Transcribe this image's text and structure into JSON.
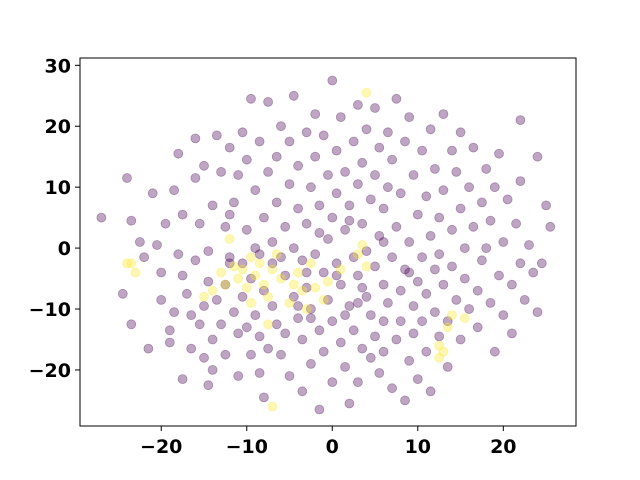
{
  "chart_data": {
    "type": "scatter",
    "title": "",
    "xlabel": "",
    "ylabel": "",
    "xlim": [
      -29.5,
      28.5
    ],
    "ylim": [
      -29.2,
      31.2
    ],
    "xticks": [
      -20,
      -10,
      0,
      10,
      20
    ],
    "yticks": [
      -20,
      -10,
      0,
      10,
      20,
      30
    ],
    "xtick_labels": [
      "−20",
      "−10",
      "0",
      "10",
      "20"
    ],
    "ytick_labels": [
      "−20",
      "−10",
      "0",
      "10",
      "20",
      "30"
    ],
    "grid": false,
    "legend": "none",
    "marker_alpha": 0.35,
    "series": [
      {
        "color": "#440154",
        "points": [
          [
            -27,
            5
          ],
          [
            -24.5,
            -7.5
          ],
          [
            -24,
            11.5
          ],
          [
            -23.5,
            4.5
          ],
          [
            -23.5,
            -12.5
          ],
          [
            -22,
            -1.5
          ],
          [
            -21.5,
            -16.5
          ],
          [
            -21,
            9
          ],
          [
            -20.5,
            0.5
          ],
          [
            -20,
            -8.5
          ],
          [
            -19.5,
            4
          ],
          [
            -19,
            -13.5
          ],
          [
            -19,
            -15.5
          ],
          [
            -18.5,
            -10.5
          ],
          [
            -18.5,
            9.5
          ],
          [
            -18,
            -1
          ],
          [
            -18,
            15.5
          ],
          [
            -17.5,
            -21.5
          ],
          [
            -17.5,
            5.5
          ],
          [
            -17.5,
            -4.5
          ],
          [
            -17,
            -7.5
          ],
          [
            -16.5,
            -11
          ],
          [
            -16.5,
            -16.5
          ],
          [
            -16,
            -2
          ],
          [
            -16,
            11.5
          ],
          [
            -16,
            18
          ],
          [
            -15.5,
            4
          ],
          [
            -15.5,
            -12.5
          ],
          [
            -15,
            -9.5
          ],
          [
            -15,
            13.5
          ],
          [
            -14.5,
            -0.5
          ],
          [
            -14.5,
            -5.5
          ],
          [
            -14.5,
            -22.5
          ],
          [
            -14,
            -15
          ],
          [
            -14,
            -20
          ],
          [
            -14,
            7
          ],
          [
            -13.5,
            18.5
          ],
          [
            -13.5,
            -8.5
          ],
          [
            -13,
            -12.5
          ],
          [
            -13,
            12.5
          ],
          [
            -12.5,
            3.5
          ],
          [
            -12.5,
            -17.5
          ],
          [
            -12.5,
            -6
          ],
          [
            -12,
            5.5
          ],
          [
            -12,
            16.5
          ],
          [
            -12,
            -1.5
          ],
          [
            -11.5,
            -10.5
          ],
          [
            -11.5,
            7.5
          ],
          [
            -11,
            -14
          ],
          [
            -11,
            -21
          ],
          [
            -11,
            12
          ],
          [
            -10.5,
            -2.5
          ],
          [
            -10.5,
            -8
          ],
          [
            -10.5,
            19
          ],
          [
            -10,
            3
          ],
          [
            -10,
            -13
          ],
          [
            -10,
            14.5
          ],
          [
            -9.5,
            -17.5
          ],
          [
            -9.5,
            -5
          ],
          [
            -9.5,
            24.5
          ],
          [
            -9,
            0
          ],
          [
            -9,
            -11
          ],
          [
            -9,
            9.5
          ],
          [
            -8.5,
            -20.5
          ],
          [
            -8.5,
            -14.5
          ],
          [
            -8.5,
            17.5
          ],
          [
            -8,
            -7
          ],
          [
            -8,
            5
          ],
          [
            -8,
            -24.5
          ],
          [
            -7.5,
            24
          ],
          [
            -7.5,
            -16.5
          ],
          [
            -7.5,
            12.5
          ],
          [
            -7,
            1
          ],
          [
            -7,
            -9.5
          ],
          [
            -7,
            -2.5
          ],
          [
            -6.5,
            15
          ],
          [
            -6.5,
            -12.5
          ],
          [
            -6.5,
            7.5
          ],
          [
            -6,
            20
          ],
          [
            -6,
            -17.5
          ],
          [
            -5.5,
            -4.5
          ],
          [
            -5.5,
            3.5
          ],
          [
            -5.5,
            -14
          ],
          [
            -5,
            10.5
          ],
          [
            -5,
            -21
          ],
          [
            -5,
            17.5
          ],
          [
            -4.5,
            -8
          ],
          [
            -4.5,
            0
          ],
          [
            -4.5,
            25
          ],
          [
            -4,
            -11.5
          ],
          [
            -4,
            6.5
          ],
          [
            -4,
            13.5
          ],
          [
            -3.5,
            -2
          ],
          [
            -3.5,
            -15
          ],
          [
            -3.5,
            -23.5
          ],
          [
            -3,
            19
          ],
          [
            -3,
            4
          ],
          [
            -3,
            -6.5
          ],
          [
            -2.5,
            -19
          ],
          [
            -2.5,
            10
          ],
          [
            -2.5,
            -10
          ],
          [
            -2,
            15
          ],
          [
            -2,
            -1
          ],
          [
            -2,
            22
          ],
          [
            -1.5,
            -13.5
          ],
          [
            -1.5,
            7
          ],
          [
            -1.5,
            -26.5
          ],
          [
            -1,
            -4
          ],
          [
            -1,
            -17
          ],
          [
            -1,
            18.5
          ],
          [
            -0.5,
            12
          ],
          [
            -0.5,
            1.5
          ],
          [
            -0.5,
            -8.5
          ],
          [
            0,
            27.5
          ],
          [
            0,
            -22
          ],
          [
            0,
            5
          ],
          [
            0,
            -12
          ],
          [
            0.5,
            -2.5
          ],
          [
            0.5,
            16
          ],
          [
            0.5,
            9
          ],
          [
            1,
            -15.5
          ],
          [
            1,
            21.5
          ],
          [
            1,
            -6
          ],
          [
            1.5,
            3
          ],
          [
            1.5,
            12.5
          ],
          [
            1.5,
            -19.5
          ],
          [
            2,
            -25.5
          ],
          [
            2,
            -9.5
          ],
          [
            2,
            7
          ],
          [
            2.5,
            -1.5
          ],
          [
            2.5,
            17.5
          ],
          [
            2.5,
            -13.5
          ],
          [
            3,
            23.5
          ],
          [
            3,
            -4.5
          ],
          [
            3,
            10.5
          ],
          [
            3,
            -22
          ],
          [
            3.5,
            -16.5
          ],
          [
            3.5,
            4
          ],
          [
            3.5,
            14
          ],
          [
            4,
            -8
          ],
          [
            4,
            -0.5
          ],
          [
            4,
            19.5
          ],
          [
            4.5,
            -11
          ],
          [
            4.5,
            -18
          ],
          [
            4.5,
            8
          ],
          [
            5,
            -14.5
          ],
          [
            5,
            23
          ],
          [
            5,
            -3
          ],
          [
            5,
            12
          ],
          [
            5.5,
            -20.5
          ],
          [
            5.5,
            2
          ],
          [
            5.5,
            16.5
          ],
          [
            6,
            -6
          ],
          [
            6,
            -12
          ],
          [
            6,
            6.5
          ],
          [
            6,
            -17
          ],
          [
            6.5,
            19
          ],
          [
            6.5,
            -9
          ],
          [
            6.5,
            10
          ],
          [
            7,
            -1.5
          ],
          [
            7,
            -23
          ],
          [
            7,
            14.5
          ],
          [
            7.5,
            -15
          ],
          [
            7.5,
            3.5
          ],
          [
            7.5,
            24.5
          ],
          [
            8,
            -7
          ],
          [
            8,
            -12
          ],
          [
            8,
            9
          ],
          [
            8.5,
            -25
          ],
          [
            8.5,
            17.5
          ],
          [
            8.5,
            -3.5
          ],
          [
            9,
            -18.5
          ],
          [
            9,
            1
          ],
          [
            9,
            21.5
          ],
          [
            9.5,
            -9.5
          ],
          [
            9.5,
            -14
          ],
          [
            9.5,
            12
          ],
          [
            10,
            -21.5
          ],
          [
            10,
            -5.5
          ],
          [
            10,
            5.5
          ],
          [
            10.5,
            16
          ],
          [
            10.5,
            -1.5
          ],
          [
            10.5,
            -12
          ],
          [
            11,
            8.5
          ],
          [
            11,
            -7.5
          ],
          [
            11,
            -17
          ],
          [
            11.5,
            19.5
          ],
          [
            11.5,
            2
          ],
          [
            11.5,
            -23.5
          ],
          [
            12,
            -3.5
          ],
          [
            12,
            13
          ],
          [
            12,
            -10.5
          ],
          [
            12.5,
            5
          ],
          [
            12.5,
            -14.5
          ],
          [
            12.5,
            -1
          ],
          [
            13,
            22
          ],
          [
            13,
            -6
          ],
          [
            13,
            9.5
          ],
          [
            13.5,
            -19.5
          ],
          [
            13.5,
            -12
          ],
          [
            14,
            3
          ],
          [
            14,
            16
          ],
          [
            14,
            -3
          ],
          [
            14.5,
            12.5
          ],
          [
            14.5,
            -8.5
          ],
          [
            15,
            -15
          ],
          [
            15,
            6.5
          ],
          [
            15,
            19
          ],
          [
            15.5,
            -5
          ],
          [
            15.5,
            0
          ],
          [
            16,
            10
          ],
          [
            16,
            -10
          ],
          [
            16.5,
            16.5
          ],
          [
            16.5,
            3.5
          ],
          [
            17,
            -7
          ],
          [
            17,
            -13
          ],
          [
            17.5,
            7.5
          ],
          [
            17.5,
            -2
          ],
          [
            18,
            13
          ],
          [
            18,
            0
          ],
          [
            18.5,
            -9
          ],
          [
            18.5,
            4.5
          ],
          [
            19,
            -17
          ],
          [
            19,
            10
          ],
          [
            19.5,
            -4.5
          ],
          [
            19.5,
            15.5
          ],
          [
            20,
            1
          ],
          [
            20,
            -11
          ],
          [
            20.5,
            8
          ],
          [
            21,
            -6
          ],
          [
            21,
            -14
          ],
          [
            21.5,
            4
          ],
          [
            22,
            21
          ],
          [
            22,
            -2.5
          ],
          [
            22,
            11
          ],
          [
            22.5,
            -8.5
          ],
          [
            23,
            0.5
          ],
          [
            23.5,
            -4
          ],
          [
            24,
            15
          ],
          [
            24,
            -10.5
          ],
          [
            24.5,
            -2.5
          ],
          [
            25,
            7
          ],
          [
            25.5,
            3.5
          ],
          [
            -22.5,
            1
          ],
          [
            -20,
            -4
          ],
          [
            -15,
            -18
          ],
          [
            -6,
            -1.5
          ],
          [
            1.5,
            -11
          ],
          [
            9,
            -4
          ],
          [
            -3,
            -4
          ],
          [
            -1.5,
            2.5
          ],
          [
            2,
            4.5
          ],
          [
            -8.5,
            -1
          ],
          [
            -12,
            -2.5
          ],
          [
            3,
            -9
          ],
          [
            6,
            1
          ],
          [
            -4,
            -9.5
          ],
          [
            0.5,
            -4.5
          ],
          [
            -2.5,
            -11.5
          ],
          [
            3.5,
            -6.5
          ]
        ]
      },
      {
        "color": "#fde725",
        "points": [
          [
            -24,
            -2.5
          ],
          [
            -23.5,
            -2.5
          ],
          [
            -23,
            -4
          ],
          [
            -15,
            -8
          ],
          [
            -14,
            -7
          ],
          [
            -13,
            -4
          ],
          [
            -12.5,
            -6
          ],
          [
            -12,
            1.5
          ],
          [
            -11.5,
            -3
          ],
          [
            -11,
            -5
          ],
          [
            -10.5,
            -3.5
          ],
          [
            -10,
            -6.5
          ],
          [
            -9.5,
            -1.5
          ],
          [
            -9,
            -4.5
          ],
          [
            -8.5,
            -2.5
          ],
          [
            -8,
            -6
          ],
          [
            -7.5,
            -12.5
          ],
          [
            -7.5,
            -8
          ],
          [
            -7,
            -26
          ],
          [
            -7,
            -3.5
          ],
          [
            -6.5,
            -1
          ],
          [
            -6,
            -5
          ],
          [
            -5,
            -9
          ],
          [
            -4.5,
            -6
          ],
          [
            -4,
            -4
          ],
          [
            -3.5,
            -7
          ],
          [
            -2.5,
            -2.5
          ],
          [
            -2,
            -6.5
          ],
          [
            -1,
            -8.5
          ],
          [
            -0.5,
            -5.5
          ],
          [
            3,
            -1
          ],
          [
            3.5,
            0.5
          ],
          [
            4,
            -3
          ],
          [
            4,
            25.5
          ],
          [
            12.5,
            -16
          ],
          [
            12.5,
            -18
          ],
          [
            13,
            -17
          ],
          [
            13.5,
            -13
          ],
          [
            14,
            -11
          ],
          [
            15.5,
            -11.5
          ],
          [
            -9.5,
            -9
          ],
          [
            -3,
            -10
          ],
          [
            1,
            -3.5
          ]
        ]
      }
    ]
  }
}
